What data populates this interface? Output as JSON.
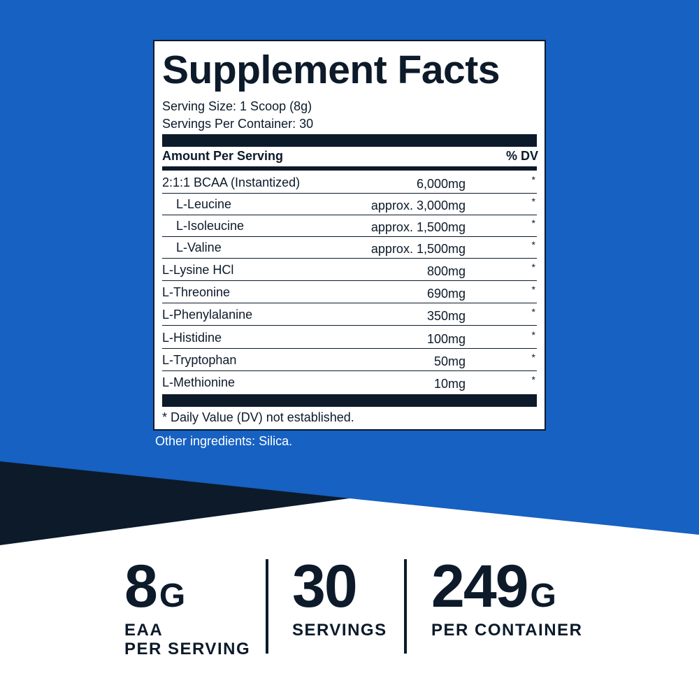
{
  "label": {
    "title": "Supplement Facts",
    "serving_size": "Serving Size: 1 Scoop (8g)",
    "servings_per_container": "Servings Per Container: 30",
    "header": {
      "amount": "Amount Per Serving",
      "dv": "% DV"
    },
    "rows": [
      {
        "name": "2:1:1 BCAA (Instantized)",
        "amount": "6,000mg",
        "dv": "*",
        "indent": false
      },
      {
        "name": "L-Leucine",
        "amount": "approx. 3,000mg",
        "dv": "*",
        "indent": true
      },
      {
        "name": "L-Isoleucine",
        "amount": "approx. 1,500mg",
        "dv": "*",
        "indent": true
      },
      {
        "name": "L-Valine",
        "amount": "approx. 1,500mg",
        "dv": "*",
        "indent": true
      },
      {
        "name": "L-Lysine HCl",
        "amount": "800mg",
        "dv": "*",
        "indent": false
      },
      {
        "name": "L-Threonine",
        "amount": "690mg",
        "dv": "*",
        "indent": false
      },
      {
        "name": "L-Phenylalanine",
        "amount": "350mg",
        "dv": "*",
        "indent": false
      },
      {
        "name": "L-Histidine",
        "amount": "100mg",
        "dv": "*",
        "indent": false
      },
      {
        "name": "L-Tryptophan",
        "amount": "50mg",
        "dv": "*",
        "indent": false
      },
      {
        "name": "L-Methionine",
        "amount": "10mg",
        "dv": "*",
        "indent": false
      }
    ],
    "footnote": "* Daily Value (DV) not established.",
    "other_ingredients": "Other ingredients: Silica."
  },
  "stats": [
    {
      "value": "8",
      "unit": "G",
      "label": [
        "EAA",
        "PER SERVING"
      ]
    },
    {
      "value": "30",
      "label": [
        "SERVINGS"
      ]
    },
    {
      "value": "249",
      "unit": "G",
      "label": [
        "PER CONTAINER"
      ]
    }
  ]
}
